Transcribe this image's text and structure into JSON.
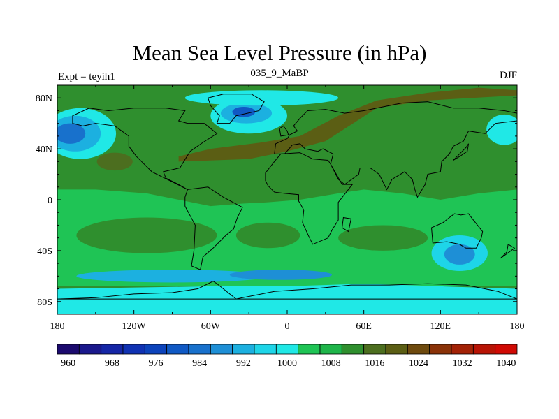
{
  "chart_data": {
    "type": "heatmap",
    "title": "Mean Sea Level Pressure (in hPa)",
    "subtitle_left": "Expt = teyih1",
    "subtitle_center": "035_9_MaBP",
    "subtitle_right": "DJF",
    "xlim": [
      -180,
      180
    ],
    "ylim": [
      -90,
      90
    ],
    "x_ticks": [
      {
        "value": -180,
        "label": "180"
      },
      {
        "value": -120,
        "label": "120W"
      },
      {
        "value": -60,
        "label": "60W"
      },
      {
        "value": 0,
        "label": "0"
      },
      {
        "value": 60,
        "label": "60E"
      },
      {
        "value": 120,
        "label": "120E"
      },
      {
        "value": 180,
        "label": "180"
      }
    ],
    "y_ticks": [
      {
        "value": 80,
        "label": "80N"
      },
      {
        "value": 40,
        "label": "40N"
      },
      {
        "value": 0,
        "label": "0"
      },
      {
        "value": -40,
        "label": "40S"
      },
      {
        "value": -80,
        "label": "80S"
      }
    ],
    "colorbar": {
      "levels": [
        960,
        964,
        968,
        972,
        976,
        980,
        984,
        988,
        992,
        996,
        1000,
        1004,
        1008,
        1012,
        1016,
        1020,
        1024,
        1028,
        1032,
        1036,
        1040
      ],
      "labeled_levels": [
        960,
        968,
        976,
        984,
        992,
        1000,
        1008,
        1016,
        1024,
        1032,
        1040
      ],
      "colors": [
        "#1b0a6e",
        "#1a188c",
        "#1526a6",
        "#1032b3",
        "#0c43bb",
        "#1059c4",
        "#1871cc",
        "#1e8fd6",
        "#1cb0e0",
        "#1ed5e8",
        "#20e8e6",
        "#1fc455",
        "#1fb54a",
        "#2f8f2e",
        "#4c6e1f",
        "#5b5e14",
        "#6e4a0e",
        "#8a3208",
        "#a32206",
        "#b81405",
        "#d00a04"
      ]
    },
    "regions": [
      {
        "name": "background",
        "value": 1010
      },
      {
        "name": "tropical-belt",
        "value": 1002
      },
      {
        "name": "south-pacific-high",
        "value": 1010
      },
      {
        "name": "south-atlantic-high",
        "value": 1010
      },
      {
        "name": "south-indian-high",
        "value": 1010
      },
      {
        "name": "southern-ocean-low",
        "value": 990
      },
      {
        "name": "southern-ocean-trough",
        "value": 986
      },
      {
        "name": "antarctic-band",
        "value": 998
      },
      {
        "name": "aleutian-low-outer",
        "value": 998
      },
      {
        "name": "aleutian-low-mid",
        "value": 990
      },
      {
        "name": "aleutian-low-core",
        "value": 982
      },
      {
        "name": "icelandic-low-outer",
        "value": 998
      },
      {
        "name": "icelandic-low-mid",
        "value": 988
      },
      {
        "name": "icelandic-low-core",
        "value": 978
      },
      {
        "name": "north-atlantic-high",
        "value": 1012
      },
      {
        "name": "asian-high",
        "value": 1017
      },
      {
        "name": "australia-low-outer",
        "value": 994
      },
      {
        "name": "australia-low-core",
        "value": 986
      },
      {
        "name": "arctic-low",
        "value": 998
      },
      {
        "name": "north-asia-low",
        "value": 998
      }
    ]
  }
}
